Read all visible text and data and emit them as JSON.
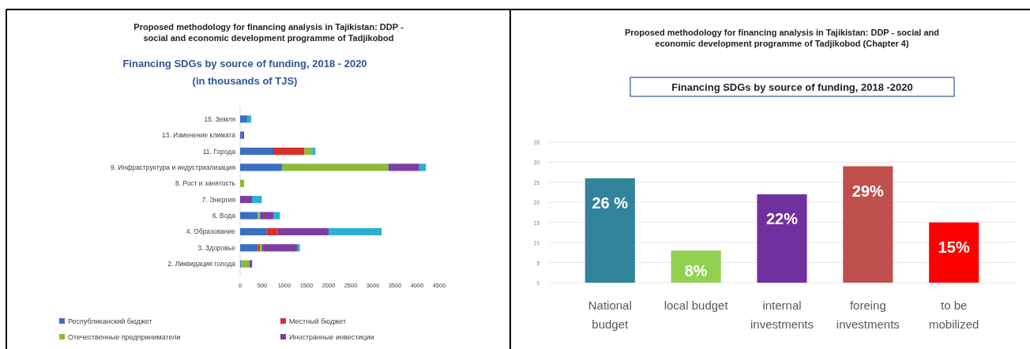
{
  "chart_data": [
    {
      "type": "bar",
      "orientation": "horizontal",
      "stacked": true,
      "title": "Proposed methodology for financing analysis in Tajikistan: DDP - social and economic development programme of Tadjikobod",
      "subtitle": "Financing SDGs by source of funding, 2018 - 2020 (in thousands of TJS)",
      "categories": [
        "15. Земля",
        "13. Изменение климата",
        "11. Города",
        "9. Инфраструктура и индустриализация",
        "8. Рост и занятость",
        "7. Энергия",
        "6. Вода",
        "4. Образование",
        "3. Здоровье",
        "2. Ликвидация голода"
      ],
      "series": [
        {
          "name": "Республиканский бюджет",
          "color": "#3a6fc4",
          "values": [
            160,
            50,
            750,
            950,
            0,
            0,
            400,
            600,
            400,
            20
          ]
        },
        {
          "name": "Местный бюджет",
          "color": "#d9302c",
          "values": [
            0,
            0,
            700,
            0,
            0,
            0,
            0,
            250,
            50,
            0
          ]
        },
        {
          "name": "Отечественные предприниматели",
          "color": "#8dba3c",
          "values": [
            0,
            0,
            180,
            2400,
            90,
            0,
            50,
            0,
            50,
            190
          ]
        },
        {
          "name": "Иностранные инвестиции",
          "color": "#7b3fa0",
          "values": [
            0,
            40,
            0,
            700,
            0,
            270,
            300,
            1150,
            800,
            60
          ]
        },
        {
          "color": "#2bb0d0",
          "values": [
            90,
            0,
            70,
            150,
            0,
            220,
            150,
            1200,
            50,
            0
          ]
        }
      ],
      "xlim": [
        0,
        4500
      ],
      "xticks": [
        0,
        500,
        1000,
        1500,
        2000,
        2500,
        3000,
        3500,
        4000,
        4500
      ],
      "legend": "bottom"
    },
    {
      "type": "bar",
      "title": "Proposed methodology for financing analysis in Tajikistan: DDP - social and economic development programme of Tadjikobod (Chapter 4)",
      "subtitle": "Financing SDGs by source of funding, 2018 -2020",
      "categories": [
        "National budget",
        "local budget",
        "internal investments",
        "foreing investments",
        "to be mobilized"
      ],
      "values": [
        26,
        8,
        22,
        29,
        15
      ],
      "colors": [
        "#31849b",
        "#92d050",
        "#7030a0",
        "#c0504d",
        "#ff0000"
      ],
      "value_labels": [
        "26 %",
        "8%",
        "22%",
        "29%",
        "15%"
      ],
      "ylim": [
        0,
        35
      ],
      "yticks": [
        0,
        5,
        10,
        15,
        20,
        25,
        30,
        35
      ],
      "grid": "y"
    }
  ]
}
